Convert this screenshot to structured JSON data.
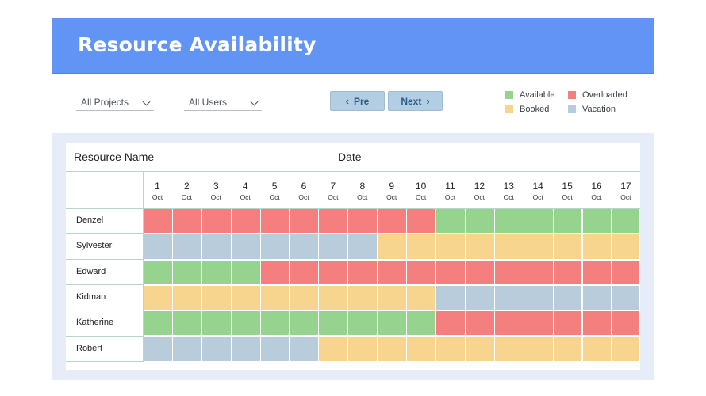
{
  "header": {
    "title": "Resource Availability"
  },
  "filters": {
    "projects_label": "All Projects",
    "users_label": "All Users"
  },
  "nav": {
    "pre_label": "Pre",
    "next_label": "Next",
    "pre_icon": "chevron-left-icon",
    "next_icon": "chevron-right-icon"
  },
  "legend": [
    {
      "key": "available",
      "label": "Available",
      "color": "#96d38f"
    },
    {
      "key": "overloaded",
      "label": "Overloaded",
      "color": "#f57f7f"
    },
    {
      "key": "booked",
      "label": "Booked",
      "color": "#f8d58f"
    },
    {
      "key": "vacation",
      "label": "Vacation",
      "color": "#b8ccdb"
    }
  ],
  "table": {
    "name_header": "Resource Name",
    "date_header": "Date",
    "days": [
      {
        "num": "1",
        "mon": "Oct"
      },
      {
        "num": "2",
        "mon": "Oct"
      },
      {
        "num": "3",
        "mon": "Oct"
      },
      {
        "num": "4",
        "mon": "Oct"
      },
      {
        "num": "5",
        "mon": "Oct"
      },
      {
        "num": "6",
        "mon": "Oct"
      },
      {
        "num": "7",
        "mon": "Oct"
      },
      {
        "num": "8",
        "mon": "Oct"
      },
      {
        "num": "9",
        "mon": "Oct"
      },
      {
        "num": "10",
        "mon": "Oct"
      },
      {
        "num": "11",
        "mon": "Oct"
      },
      {
        "num": "12",
        "mon": "Oct"
      },
      {
        "num": "13",
        "mon": "Oct"
      },
      {
        "num": "14",
        "mon": "Oct"
      },
      {
        "num": "15",
        "mon": "Oct"
      },
      {
        "num": "16",
        "mon": "Oct"
      },
      {
        "num": "17",
        "mon": "Oct"
      }
    ],
    "rows": [
      {
        "name": "Denzel",
        "status": [
          "overloaded",
          "overloaded",
          "overloaded",
          "overloaded",
          "overloaded",
          "overloaded",
          "overloaded",
          "overloaded",
          "overloaded",
          "overloaded",
          "available",
          "available",
          "available",
          "available",
          "available",
          "available",
          "available"
        ]
      },
      {
        "name": "Sylvester",
        "status": [
          "vacation",
          "vacation",
          "vacation",
          "vacation",
          "vacation",
          "vacation",
          "vacation",
          "vacation",
          "booked",
          "booked",
          "booked",
          "booked",
          "booked",
          "booked",
          "booked",
          "booked",
          "booked"
        ]
      },
      {
        "name": "Edward",
        "status": [
          "available",
          "available",
          "available",
          "available",
          "overloaded",
          "overloaded",
          "overloaded",
          "overloaded",
          "overloaded",
          "overloaded",
          "overloaded",
          "overloaded",
          "overloaded",
          "overloaded",
          "overloaded",
          "overloaded",
          "overloaded"
        ]
      },
      {
        "name": "Kidman",
        "status": [
          "booked",
          "booked",
          "booked",
          "booked",
          "booked",
          "booked",
          "booked",
          "booked",
          "booked",
          "booked",
          "vacation",
          "vacation",
          "vacation",
          "vacation",
          "vacation",
          "vacation",
          "vacation"
        ]
      },
      {
        "name": "Katherine",
        "status": [
          "available",
          "available",
          "available",
          "available",
          "available",
          "available",
          "available",
          "available",
          "available",
          "available",
          "overloaded",
          "overloaded",
          "overloaded",
          "overloaded",
          "overloaded",
          "overloaded",
          "overloaded"
        ]
      },
      {
        "name": "Robert",
        "status": [
          "vacation",
          "vacation",
          "vacation",
          "vacation",
          "vacation",
          "vacation",
          "booked",
          "booked",
          "booked",
          "booked",
          "booked",
          "booked",
          "booked",
          "booked",
          "booked",
          "booked",
          "booked"
        ]
      }
    ]
  }
}
